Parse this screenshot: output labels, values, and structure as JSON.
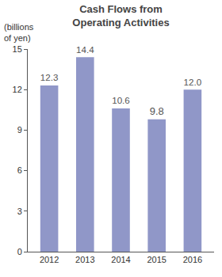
{
  "chart_data": {
    "type": "bar",
    "title": "Cash Flows from\nOperating Activities",
    "ylabel": "(billions\nof yen)",
    "categories": [
      "2012",
      "2013",
      "2014",
      "2015",
      "2016"
    ],
    "values": [
      12.3,
      14.4,
      10.6,
      9.8,
      12.0
    ],
    "value_labels": [
      "12.3",
      "14.4",
      "10.6",
      "9.8",
      "12.0"
    ],
    "data_labels": true,
    "color": "#9097c8",
    "ylim": [
      0,
      15
    ],
    "yticks": [
      0,
      3,
      6,
      9,
      12,
      15
    ],
    "grid": false
  }
}
